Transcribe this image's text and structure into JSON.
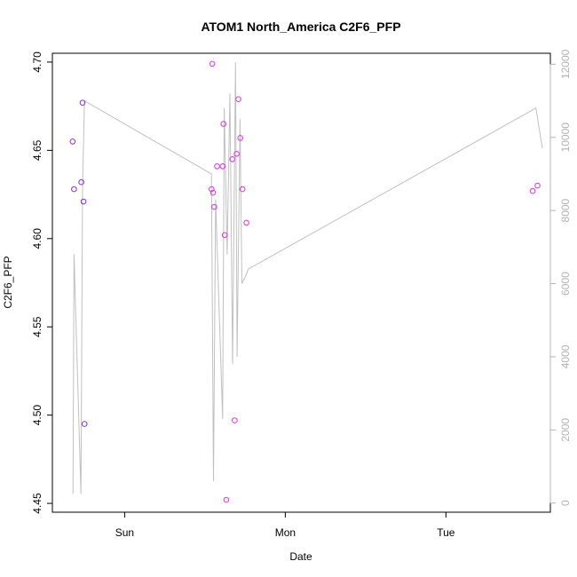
{
  "chart_data": {
    "type": "scatter",
    "title": "ATOM1 North_America C2F6_PFP",
    "xlabel": "Date",
    "ylabel": "C2F6_PFP",
    "x_ticks": [
      "Sun",
      "Mon",
      "Tue"
    ],
    "x_tick_positions_days": [
      0,
      1,
      2
    ],
    "xlim_days": [
      -0.45,
      2.65
    ],
    "ylim": [
      4.445,
      4.705
    ],
    "y_ticks": [
      4.45,
      4.5,
      4.55,
      4.6,
      4.65,
      4.7
    ],
    "y_tick_labels": [
      "4.45",
      "4.50",
      "4.55",
      "4.60",
      "4.65",
      "4.70"
    ],
    "y2_ticks": [
      0,
      2000,
      4000,
      6000,
      8000,
      10000,
      12000
    ],
    "y2_tick_labels": [
      "0",
      "2000",
      "4000",
      "6000",
      "8000",
      "10000",
      "12000"
    ],
    "y2lim": [
      -250,
      12300
    ],
    "grid": false,
    "legend": "none",
    "points": [
      {
        "x": -0.324,
        "y": 4.655,
        "color": "#8a2be2"
      },
      {
        "x": -0.315,
        "y": 4.628,
        "color": "#8a2be2"
      },
      {
        "x": -0.27,
        "y": 4.632,
        "color": "#8a2be2"
      },
      {
        "x": -0.262,
        "y": 4.677,
        "color": "#8a2be2"
      },
      {
        "x": -0.256,
        "y": 4.621,
        "color": "#8a2be2"
      },
      {
        "x": -0.25,
        "y": 4.495,
        "color": "#8a2be2"
      },
      {
        "x": 0.541,
        "y": 4.628,
        "color": "#dd33dd"
      },
      {
        "x": 0.546,
        "y": 4.699,
        "color": "#dd33dd"
      },
      {
        "x": 0.55,
        "y": 4.626,
        "color": "#dd33dd"
      },
      {
        "x": 0.558,
        "y": 4.618,
        "color": "#dd33dd"
      },
      {
        "x": 0.575,
        "y": 4.641,
        "color": "#dd33dd"
      },
      {
        "x": 0.61,
        "y": 4.641,
        "color": "#dd33dd"
      },
      {
        "x": 0.615,
        "y": 4.665,
        "color": "#dd33dd"
      },
      {
        "x": 0.623,
        "y": 4.602,
        "color": "#dd33dd"
      },
      {
        "x": 0.633,
        "y": 4.452,
        "color": "#dd33dd"
      },
      {
        "x": 0.67,
        "y": 4.645,
        "color": "#dd33dd"
      },
      {
        "x": 0.685,
        "y": 4.497,
        "color": "#dd33dd"
      },
      {
        "x": 0.697,
        "y": 4.648,
        "color": "#dd33dd"
      },
      {
        "x": 0.708,
        "y": 4.679,
        "color": "#dd33dd"
      },
      {
        "x": 0.72,
        "y": 4.657,
        "color": "#dd33dd"
      },
      {
        "x": 0.733,
        "y": 4.628,
        "color": "#dd33dd"
      },
      {
        "x": 0.758,
        "y": 4.609,
        "color": "#dd33dd"
      },
      {
        "x": 2.54,
        "y": 4.627,
        "color": "#dd33dd"
      },
      {
        "x": 2.57,
        "y": 4.63,
        "color": "#dd33dd"
      }
    ],
    "secondary_series": {
      "color": "#c0c0c0",
      "axis": "right",
      "x": [
        -0.322,
        -0.315,
        -0.272,
        -0.262,
        -0.25,
        0.54,
        0.553,
        0.566,
        0.61,
        0.62,
        0.638,
        0.655,
        0.672,
        0.69,
        0.7,
        0.718,
        0.73,
        0.752,
        0.77,
        2.56,
        2.6
      ],
      "y": [
        250,
        6800,
        250,
        8700,
        11000,
        9000,
        600,
        8300,
        2300,
        10800,
        6800,
        11200,
        3800,
        12050,
        4000,
        10500,
        6000,
        6200,
        6400,
        10800,
        9700
      ]
    }
  }
}
